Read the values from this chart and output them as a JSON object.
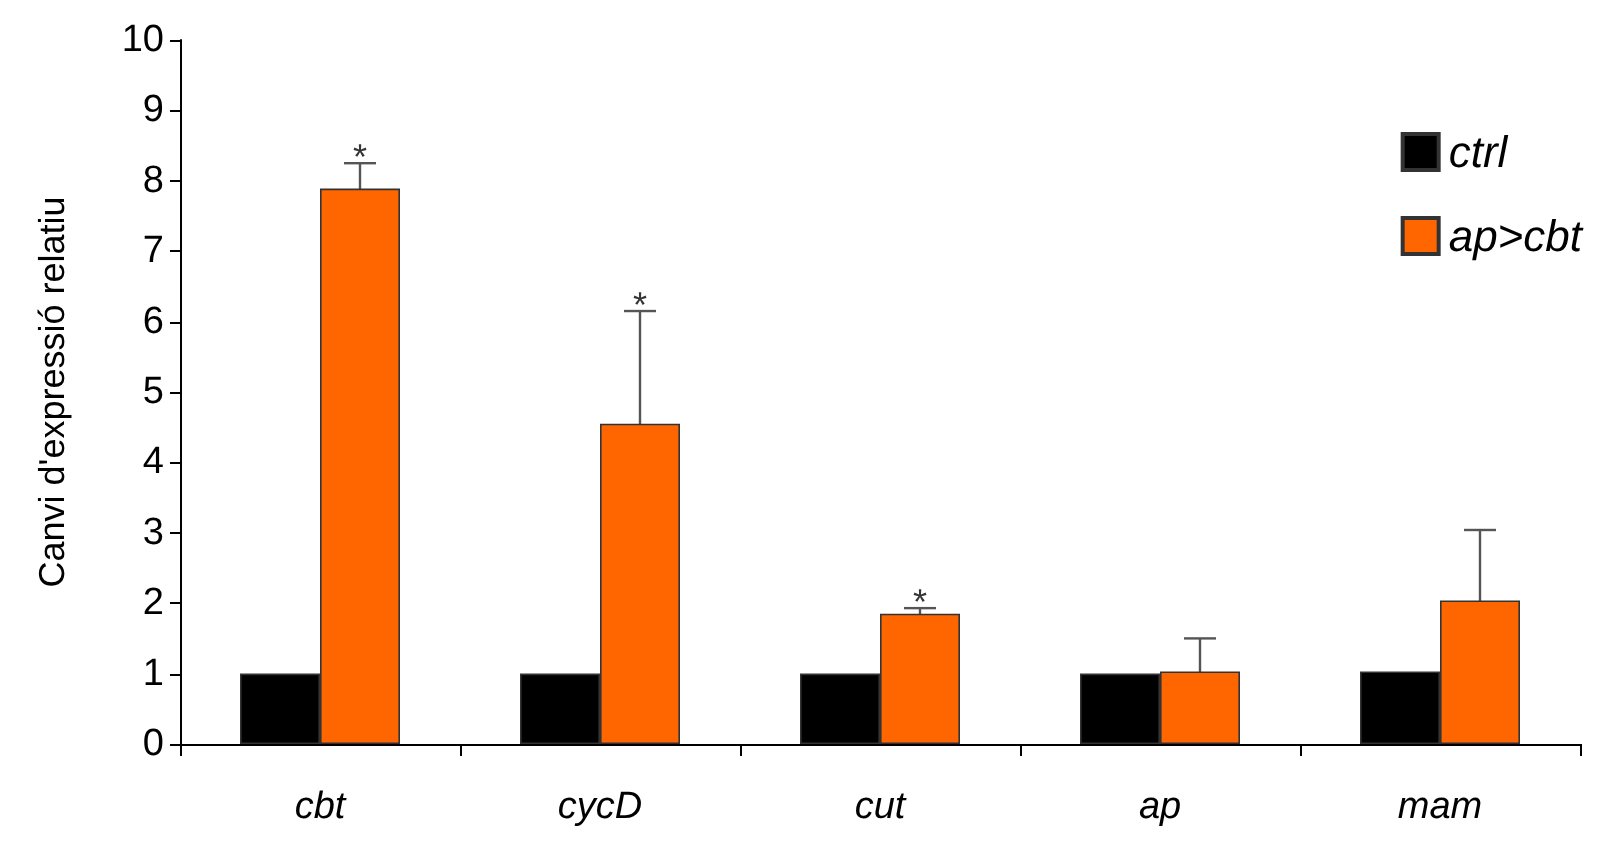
{
  "chart_data": {
    "type": "bar",
    "ylabel": "Canvi d'expressió relatiu",
    "categories": [
      "cbt",
      "cycD",
      "cut",
      "ap",
      "mam"
    ],
    "series": [
      {
        "name": "ctrl",
        "color": "#000000",
        "values": [
          1,
          1,
          1,
          1,
          1.03
        ]
      },
      {
        "name": "ap>cbt",
        "color": "#ff6600",
        "values": [
          7.89,
          4.55,
          1.85,
          1.03,
          2.04
        ],
        "errors": [
          0.36,
          1.6,
          0.08,
          0.47,
          1.0
        ]
      }
    ],
    "ylim": [
      0,
      10
    ],
    "yticks": [
      0,
      1,
      2,
      3,
      4,
      5,
      6,
      7,
      8,
      9,
      10
    ],
    "grid": false,
    "legend": "top right",
    "annotations": [
      {
        "text": "*",
        "x": "cbt",
        "y": 7.89
      },
      {
        "text": "*",
        "x": "cycD",
        "y": 4.55
      },
      {
        "text": "*",
        "x": "cut",
        "y": 1.85
      }
    ]
  }
}
